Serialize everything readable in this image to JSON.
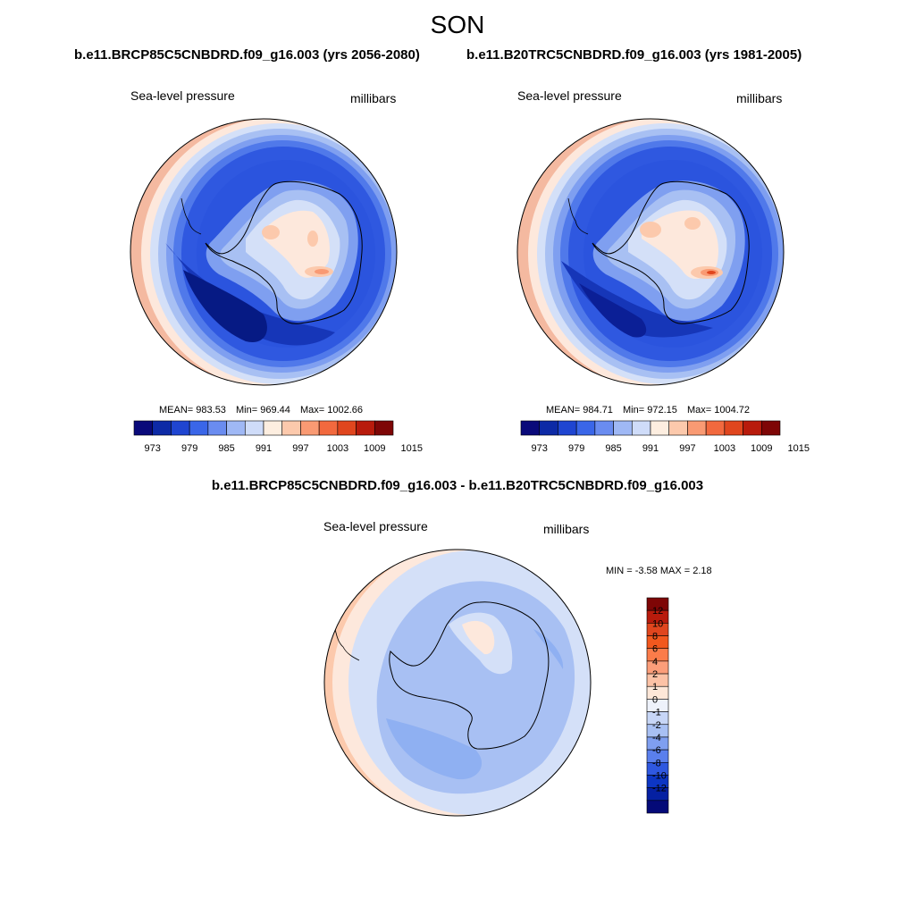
{
  "title": "SON",
  "panels": [
    {
      "case_title": "b.e11.BRCP85C5CNBDRD.f09_g16.003 (yrs 2056-2080)",
      "left_label": "Sea-level pressure",
      "right_label": "millibars",
      "stats": {
        "mean_label": "MEAN=",
        "mean": "983.53",
        "min_label": "Min=",
        "min": "969.44",
        "max_label": "Max=",
        "max": "1002.66"
      }
    },
    {
      "case_title": "b.e11.B20TRC5CNBDRD.f09_g16.003 (yrs 1981-2005)",
      "left_label": "Sea-level pressure",
      "right_label": "millibars",
      "stats": {
        "mean_label": "MEAN=",
        "mean": "984.71",
        "min_label": "Min=",
        "min": "972.15",
        "max_label": "Max=",
        "max": "1004.72"
      }
    }
  ],
  "difference": {
    "title": "b.e11.BRCP85C5CNBDRD.f09_g16.003 - b.e11.B20TRC5CNBDRD.f09_g16.003",
    "left_label": "Sea-level pressure",
    "right_label": "millibars",
    "min_text": "MIN =  -3.58",
    "max_text": "MAX =   2.18"
  },
  "colorbar_horizontal": {
    "colors": [
      "#0a0a7a",
      "#0d2aa6",
      "#1f45d1",
      "#3a66e8",
      "#6a8cf0",
      "#9fb8f5",
      "#cfdcf9",
      "#fdeee0",
      "#fcc9ac",
      "#f99a73",
      "#f2693e",
      "#e0461e",
      "#b81b0c",
      "#7e0606"
    ],
    "tick_labels": [
      "973",
      "979",
      "985",
      "991",
      "997",
      "1003",
      "1009",
      "1015"
    ]
  },
  "colorbar_vertical": {
    "colors_top_to_bottom": [
      "#7e0606",
      "#b81b0c",
      "#e0461e",
      "#f2581e",
      "#fb7c4a",
      "#fc9e7a",
      "#fcc2a6",
      "#fde7d8",
      "#eef2fb",
      "#c7d6f6",
      "#a8c0f3",
      "#7f9ff0",
      "#5a7fed",
      "#2f58e0",
      "#0d36c4",
      "#0520a2",
      "#040a78"
    ],
    "tick_labels": [
      "12",
      "10",
      "8",
      "6",
      "4",
      "2",
      "1",
      "0",
      "-1",
      "-2",
      "-4",
      "-6",
      "-8",
      "-10",
      "-12"
    ]
  }
}
